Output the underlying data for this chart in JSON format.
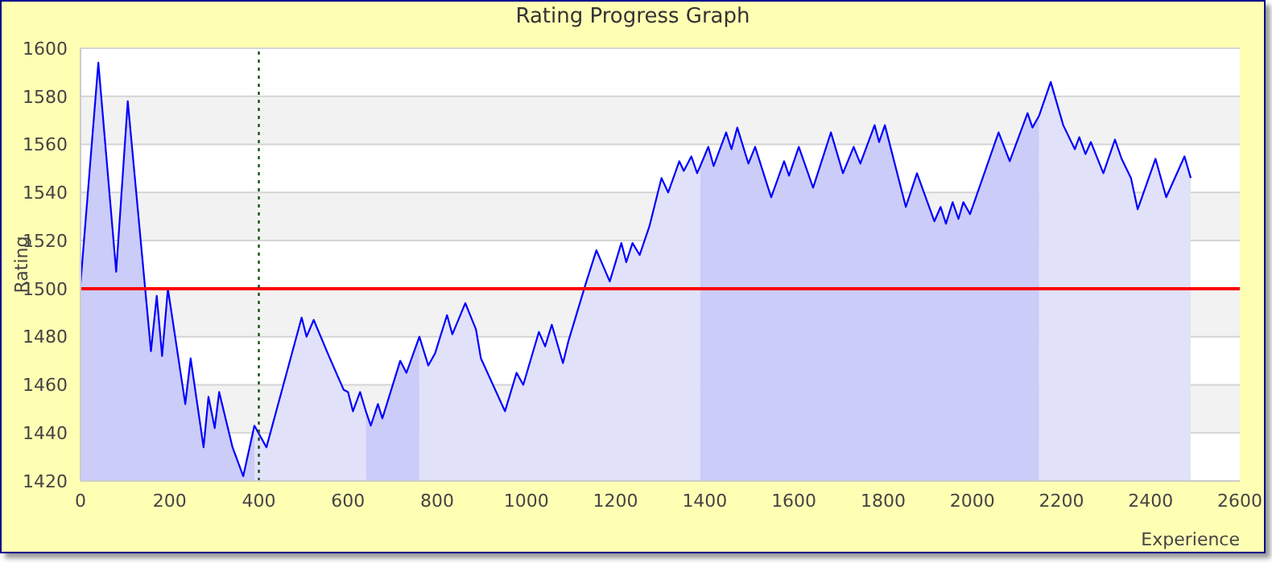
{
  "chart_data": {
    "type": "line",
    "title": "Rating Progress Graph",
    "xlabel": "Experience",
    "ylabel": "Rating",
    "xlim": [
      0,
      2600
    ],
    "xticks": [
      0,
      200,
      400,
      600,
      800,
      1000,
      1200,
      1400,
      1600,
      1800,
      2000,
      2200,
      2400,
      2600
    ],
    "ylim": [
      1420,
      1600
    ],
    "yticks": [
      1420,
      1440,
      1460,
      1480,
      1500,
      1520,
      1540,
      1560,
      1580,
      1600
    ],
    "grid": "y",
    "ref_lines": [
      {
        "axis": "y",
        "value": 1500,
        "color": "#ff0000",
        "line_style": "solid"
      },
      {
        "axis": "x",
        "value": 400,
        "color": "#1a4d1a",
        "line_style": "dotted"
      }
    ],
    "series": [
      {
        "type": "area",
        "color": "#ccccf8",
        "x": [
          0,
          40,
          80,
          106,
          145,
          158,
          171,
          183,
          196,
          235,
          247,
          276,
          287,
          301,
          311,
          341,
          365,
          390
        ],
        "values": [
          1502,
          1594,
          1507,
          1578,
          1500,
          1474,
          1497,
          1472,
          1500,
          1452,
          1471,
          1434,
          1455,
          1442,
          1457,
          1434,
          1422,
          1443
        ]
      },
      {
        "type": "area",
        "color": "#e1e1fa",
        "x": [
          390,
          417,
          496,
          507,
          523,
          557,
          590,
          600,
          611,
          627,
          640
        ],
        "values": [
          1443,
          1434,
          1488,
          1480,
          1487,
          1472,
          1458,
          1457,
          1449,
          1457,
          1449
        ]
      },
      {
        "type": "area",
        "color": "#ccccf8",
        "x": [
          640,
          651,
          667,
          677,
          717,
          731,
          760
        ],
        "values": [
          1449,
          1443,
          1452,
          1446,
          1470,
          1465,
          1480
        ]
      },
      {
        "type": "area",
        "color": "#e1e1fa",
        "x": [
          760,
          780,
          795,
          822,
          834,
          863,
          887,
          898,
          952,
          978,
          993,
          1028,
          1042,
          1057,
          1082,
          1094,
          1133,
          1157,
          1187,
          1213,
          1224,
          1238,
          1254,
          1276,
          1303,
          1318,
          1343,
          1353,
          1370,
          1383,
          1390
        ],
        "values": [
          1480,
          1468,
          1473,
          1489,
          1481,
          1494,
          1483,
          1471,
          1449,
          1465,
          1460,
          1482,
          1476,
          1485,
          1469,
          1478,
          1502,
          1516,
          1503,
          1519,
          1511,
          1519,
          1514,
          1526,
          1546,
          1540,
          1553,
          1549,
          1555,
          1548,
          1551
        ]
      },
      {
        "type": "area",
        "color": "#ccccf8",
        "x": [
          1390,
          1408,
          1420,
          1448,
          1460,
          1473,
          1498,
          1513,
          1549,
          1578,
          1589,
          1611,
          1643,
          1683,
          1710,
          1734,
          1749,
          1781,
          1791,
          1804,
          1851,
          1876,
          1915,
          1929,
          1941,
          1956,
          1969,
          1980,
          1995,
          2059,
          2084,
          2124,
          2135,
          2150
        ],
        "values": [
          1551,
          1559,
          1551,
          1565,
          1558,
          1567,
          1552,
          1559,
          1538,
          1553,
          1547,
          1559,
          1542,
          1565,
          1548,
          1559,
          1552,
          1568,
          1561,
          1568,
          1534,
          1548,
          1528,
          1534,
          1527,
          1536,
          1529,
          1536,
          1531,
          1565,
          1553,
          1573,
          1567,
          1572
        ]
      },
      {
        "type": "area",
        "color": "#e1e1fa",
        "x": [
          2150,
          2176,
          2204,
          2230,
          2240,
          2254,
          2266,
          2294,
          2320,
          2335,
          2356,
          2371,
          2411,
          2435,
          2476,
          2490
        ],
        "values": [
          1572,
          1586,
          1568,
          1558,
          1563,
          1556,
          1561,
          1548,
          1562,
          1554,
          1546,
          1533,
          1554,
          1538,
          1555,
          1546
        ]
      },
      {
        "color": "#0000ff",
        "x": [
          0,
          40,
          80,
          106,
          145,
          158,
          171,
          183,
          196,
          235,
          247,
          276,
          287,
          301,
          311,
          341,
          365,
          390,
          417,
          496,
          507,
          523,
          557,
          590,
          600,
          611,
          627,
          640,
          651,
          667,
          677,
          717,
          731,
          760,
          780,
          795,
          822,
          834,
          863,
          887,
          898,
          952,
          978,
          993,
          1028,
          1042,
          1057,
          1082,
          1094,
          1133,
          1157,
          1187,
          1213,
          1224,
          1238,
          1254,
          1276,
          1303,
          1318,
          1343,
          1353,
          1370,
          1383,
          1390,
          1408,
          1420,
          1448,
          1460,
          1473,
          1498,
          1513,
          1549,
          1578,
          1589,
          1611,
          1643,
          1683,
          1710,
          1734,
          1749,
          1781,
          1791,
          1804,
          1851,
          1876,
          1915,
          1929,
          1941,
          1956,
          1969,
          1980,
          1995,
          2059,
          2084,
          2124,
          2135,
          2150,
          2176,
          2204,
          2230,
          2240,
          2254,
          2266,
          2294,
          2320,
          2335,
          2356,
          2371,
          2411,
          2435,
          2476,
          2490
        ],
        "values": [
          1502,
          1594,
          1507,
          1578,
          1500,
          1474,
          1497,
          1472,
          1500,
          1452,
          1471,
          1434,
          1455,
          1442,
          1457,
          1434,
          1422,
          1443,
          1434,
          1488,
          1480,
          1487,
          1472,
          1458,
          1457,
          1449,
          1457,
          1449,
          1443,
          1452,
          1446,
          1470,
          1465,
          1480,
          1468,
          1473,
          1489,
          1481,
          1494,
          1483,
          1471,
          1449,
          1465,
          1460,
          1482,
          1476,
          1485,
          1469,
          1478,
          1502,
          1516,
          1503,
          1519,
          1511,
          1519,
          1514,
          1526,
          1546,
          1540,
          1553,
          1549,
          1555,
          1548,
          1551,
          1559,
          1551,
          1565,
          1558,
          1567,
          1552,
          1559,
          1538,
          1553,
          1547,
          1559,
          1542,
          1565,
          1548,
          1559,
          1552,
          1568,
          1561,
          1568,
          1534,
          1548,
          1528,
          1534,
          1527,
          1536,
          1529,
          1536,
          1531,
          1565,
          1553,
          1573,
          1567,
          1572,
          1586,
          1568,
          1558,
          1563,
          1556,
          1561,
          1548,
          1562,
          1554,
          1546,
          1533,
          1554,
          1538,
          1555,
          1546
        ]
      }
    ]
  }
}
